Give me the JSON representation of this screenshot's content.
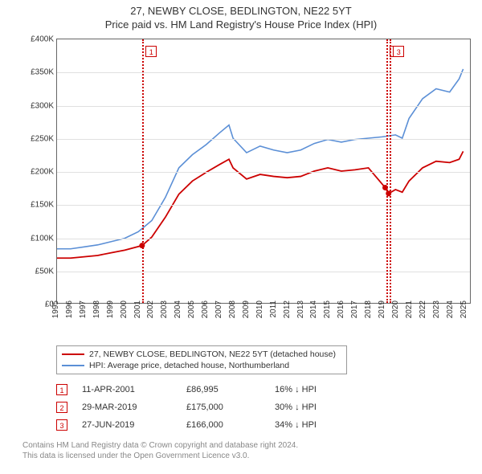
{
  "title": {
    "line1": "27, NEWBY CLOSE, BEDLINGTON, NE22 5YT",
    "line2": "Price paid vs. HM Land Registry's House Price Index (HPI)"
  },
  "chart": {
    "type": "line",
    "background_color": "#ffffff",
    "grid_color": "#e0e0e0",
    "border_color": "#666666",
    "title_fontsize": 13,
    "label_fontsize": 10,
    "x": {
      "min": 1995,
      "max": 2025.5,
      "ticks": [
        1995,
        1996,
        1997,
        1998,
        1999,
        2000,
        2001,
        2002,
        2003,
        2004,
        2005,
        2006,
        2007,
        2008,
        2009,
        2010,
        2011,
        2012,
        2013,
        2014,
        2015,
        2016,
        2017,
        2018,
        2019,
        2020,
        2021,
        2022,
        2023,
        2024,
        2025
      ]
    },
    "y": {
      "min": 0,
      "max": 400000,
      "ticks": [
        0,
        50000,
        100000,
        150000,
        200000,
        250000,
        300000,
        350000,
        400000
      ],
      "tick_labels": [
        "£0",
        "£50K",
        "£100K",
        "£150K",
        "£200K",
        "£250K",
        "£300K",
        "£350K",
        "£400K"
      ]
    },
    "series": [
      {
        "id": "property",
        "label": "27, NEWBY CLOSE, BEDLINGTON, NE22 5YT (detached house)",
        "color": "#cc0000",
        "line_width": 1.8,
        "data": [
          [
            1995,
            68000
          ],
          [
            1996,
            68000
          ],
          [
            1997,
            70000
          ],
          [
            1998,
            72000
          ],
          [
            1999,
            76000
          ],
          [
            2000,
            80000
          ],
          [
            2001.28,
            86995
          ],
          [
            2002,
            100000
          ],
          [
            2003,
            130000
          ],
          [
            2004,
            165000
          ],
          [
            2005,
            185000
          ],
          [
            2006,
            198000
          ],
          [
            2007,
            210000
          ],
          [
            2007.7,
            218000
          ],
          [
            2008,
            205000
          ],
          [
            2009,
            188000
          ],
          [
            2010,
            195000
          ],
          [
            2011,
            192000
          ],
          [
            2012,
            190000
          ],
          [
            2013,
            192000
          ],
          [
            2014,
            200000
          ],
          [
            2015,
            205000
          ],
          [
            2016,
            200000
          ],
          [
            2017,
            202000
          ],
          [
            2018,
            205000
          ],
          [
            2019.24,
            175000
          ],
          [
            2019.49,
            166000
          ],
          [
            2020,
            172000
          ],
          [
            2020.5,
            168000
          ],
          [
            2021,
            185000
          ],
          [
            2022,
            205000
          ],
          [
            2023,
            215000
          ],
          [
            2024,
            213000
          ],
          [
            2024.7,
            218000
          ],
          [
            2025,
            230000
          ]
        ]
      },
      {
        "id": "hpi",
        "label": "HPI: Average price, detached house, Northumberland",
        "color": "#5b8fd6",
        "line_width": 1.6,
        "data": [
          [
            1995,
            82000
          ],
          [
            1996,
            82000
          ],
          [
            1997,
            85000
          ],
          [
            1998,
            88000
          ],
          [
            1999,
            93000
          ],
          [
            2000,
            98000
          ],
          [
            2001,
            108000
          ],
          [
            2002,
            125000
          ],
          [
            2003,
            160000
          ],
          [
            2004,
            205000
          ],
          [
            2005,
            225000
          ],
          [
            2006,
            240000
          ],
          [
            2007,
            258000
          ],
          [
            2007.7,
            270000
          ],
          [
            2008,
            250000
          ],
          [
            2009,
            228000
          ],
          [
            2010,
            238000
          ],
          [
            2011,
            232000
          ],
          [
            2012,
            228000
          ],
          [
            2013,
            232000
          ],
          [
            2014,
            242000
          ],
          [
            2015,
            248000
          ],
          [
            2016,
            244000
          ],
          [
            2017,
            248000
          ],
          [
            2018,
            250000
          ],
          [
            2019,
            252000
          ],
          [
            2020,
            255000
          ],
          [
            2020.5,
            250000
          ],
          [
            2021,
            280000
          ],
          [
            2022,
            310000
          ],
          [
            2023,
            325000
          ],
          [
            2024,
            320000
          ],
          [
            2024.7,
            340000
          ],
          [
            2025,
            355000
          ]
        ]
      }
    ],
    "sale_markers": [
      {
        "n": "1",
        "x": 2001.28,
        "y": 86995
      },
      {
        "n": "2",
        "x": 2019.24,
        "y": 175000
      },
      {
        "n": "3",
        "x": 2019.49,
        "y": 166000
      }
    ],
    "marker_box_color": "#cc0000",
    "marker_line_style": "dotted"
  },
  "legend": {
    "rows": [
      {
        "color": "#cc0000",
        "label": "27, NEWBY CLOSE, BEDLINGTON, NE22 5YT (detached house)"
      },
      {
        "color": "#5b8fd6",
        "label": "HPI: Average price, detached house, Northumberland"
      }
    ]
  },
  "sales": [
    {
      "n": "1",
      "date": "11-APR-2001",
      "price": "£86,995",
      "delta": "16% ↓ HPI"
    },
    {
      "n": "2",
      "date": "29-MAR-2019",
      "price": "£175,000",
      "delta": "30% ↓ HPI"
    },
    {
      "n": "3",
      "date": "27-JUN-2019",
      "price": "£166,000",
      "delta": "34% ↓ HPI"
    }
  ],
  "attribution": {
    "line1": "Contains HM Land Registry data © Crown copyright and database right 2024.",
    "line2": "This data is licensed under the Open Government Licence v3.0."
  }
}
